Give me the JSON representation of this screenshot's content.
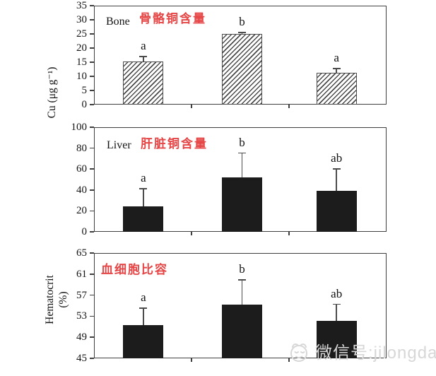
{
  "page": {
    "background": "#ffffff"
  },
  "colors": {
    "title_red": "#e64545",
    "bar_fill": "#1c1c1c",
    "axis": "#3f3f3f",
    "hatch_line": "#4a4a4a",
    "watermark": "#d7d7d7"
  },
  "watermark": {
    "icon": "smiley-face-icon",
    "text": "微信号:jilongda"
  },
  "chart_data": [
    {
      "type": "bar",
      "panel_label": "Bone",
      "title_zh": "骨骼铜含量",
      "ylabel": "Cu (μg g⁻¹)",
      "ylim": [
        0,
        35
      ],
      "yticks": [
        0,
        5,
        10,
        15,
        20,
        25,
        30,
        35
      ],
      "bar_style": "hatched",
      "values": [
        15.2,
        25.0,
        11.3
      ],
      "errors_upper": [
        2.0,
        0.7,
        1.7
      ],
      "sig_labels": [
        "a",
        "b",
        "a"
      ],
      "legend": "none",
      "grid": false
    },
    {
      "type": "bar",
      "panel_label": "Liver",
      "title_zh": "肝脏铜含量",
      "ylabel": "",
      "ylim": [
        0,
        100
      ],
      "yticks": [
        0,
        20,
        40,
        60,
        80,
        100
      ],
      "bar_style": "solid",
      "values": [
        24,
        52,
        39
      ],
      "errors_upper": [
        18,
        24,
        22
      ],
      "sig_labels": [
        "a",
        "b",
        "ab"
      ],
      "legend": "none",
      "grid": false
    },
    {
      "type": "bar",
      "panel_label": "",
      "title_zh": "血细胞比容",
      "ylabel_lines": [
        "Hematocrit",
        "(%)"
      ],
      "ylim": [
        45,
        65
      ],
      "yticks": [
        45,
        49,
        53,
        57,
        61,
        65
      ],
      "bar_style": "solid",
      "values": [
        51.3,
        55.2,
        52.1
      ],
      "errors_upper": [
        3.4,
        4.8,
        3.3
      ],
      "sig_labels": [
        "a",
        "b",
        "ab"
      ],
      "legend": "none",
      "grid": false
    }
  ]
}
